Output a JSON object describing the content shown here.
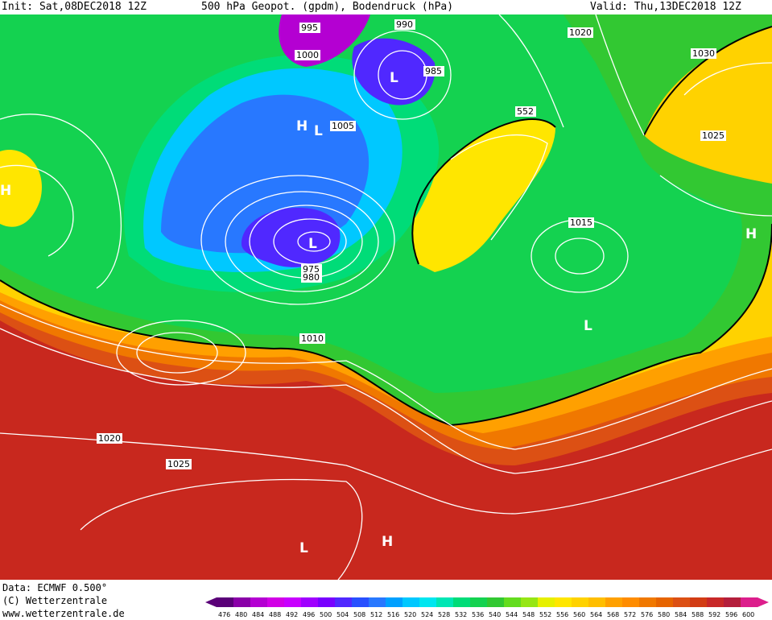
{
  "header": {
    "init": "Init: Sat,08DEC2018 12Z",
    "title": "500 hPa Geopot. (gpdm), Bodendruck (hPa)",
    "valid": "Valid: Thu,13DEC2018 12Z"
  },
  "footer": {
    "data_source": "Data: ECMWF  0.500°",
    "copyright": "(C) Wetterzentrale",
    "url": "www.wetterzentrale.de"
  },
  "legend": {
    "ticks": [
      "476",
      "480",
      "484",
      "488",
      "492",
      "496",
      "500",
      "504",
      "508",
      "512",
      "516",
      "520",
      "524",
      "528",
      "532",
      "536",
      "540",
      "544",
      "548",
      "552",
      "556",
      "560",
      "564",
      "568",
      "572",
      "576",
      "580",
      "584",
      "588",
      "592",
      "596",
      "600"
    ],
    "colors": [
      "#5a0078",
      "#8a00a8",
      "#b400d2",
      "#d200e6",
      "#c800ff",
      "#a000ff",
      "#7800ff",
      "#5028ff",
      "#2850ff",
      "#2878ff",
      "#00a0ff",
      "#00c8ff",
      "#00e6f0",
      "#00e6b4",
      "#00dc78",
      "#14d250",
      "#32c832",
      "#64dc1e",
      "#96e614",
      "#e6f000",
      "#ffe600",
      "#ffd200",
      "#ffbe00",
      "#ffa000",
      "#ff8c00",
      "#f07800",
      "#e66400",
      "#dc5014",
      "#d23c14",
      "#c82828",
      "#b41e3c",
      "#dc1e8c"
    ]
  },
  "map": {
    "isobar_labels": [
      "995",
      "990",
      "1000",
      "985",
      "1005",
      "1020",
      "1030",
      "1015",
      "552",
      "1025",
      "1010",
      "975",
      "980",
      "1020",
      "1025"
    ],
    "pressure_centers": [
      "L",
      "H"
    ]
  }
}
